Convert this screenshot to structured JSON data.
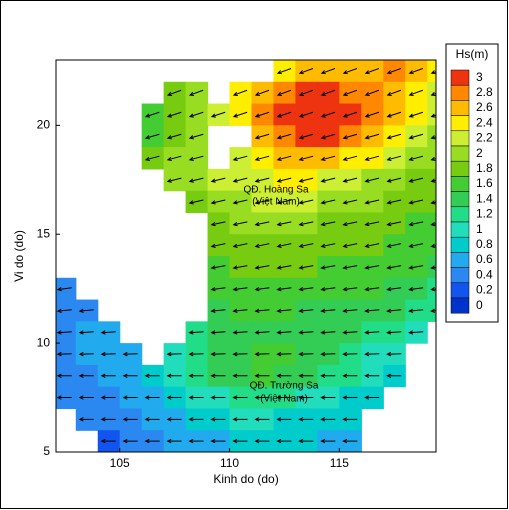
{
  "chart_data": {
    "type": "heatmap",
    "xlabel": "Kinh do (do)",
    "ylabel": "Vi do (do)",
    "xlim": [
      102.1,
      119.4
    ],
    "ylim": [
      5,
      23
    ],
    "xticks": [
      105,
      110,
      115
    ],
    "yticks": [
      5,
      10,
      15,
      20
    ],
    "x": [
      102.5,
      103.5,
      104.5,
      105.5,
      106.5,
      107.5,
      108.5,
      109.5,
      110.5,
      111.5,
      112.5,
      113.5,
      114.5,
      115.5,
      116.5,
      117.5,
      118.5,
      119.5
    ],
    "y": [
      22.5,
      21.5,
      20.5,
      19.5,
      18.5,
      17.5,
      16.5,
      15.5,
      14.5,
      13.5,
      12.5,
      11.5,
      10.5,
      9.5,
      8.5,
      7.5,
      6.5,
      5.5
    ],
    "values": [
      [
        null,
        null,
        null,
        null,
        null,
        null,
        null,
        null,
        null,
        null,
        2.4,
        2.6,
        2.6,
        2.7,
        2.7,
        2.8,
        2.6,
        2.4
      ],
      [
        null,
        null,
        null,
        null,
        null,
        1.8,
        2.0,
        null,
        2.4,
        2.6,
        2.8,
        3.0,
        3.0,
        2.9,
        2.8,
        2.7,
        2.5,
        2.3
      ],
      [
        null,
        null,
        null,
        null,
        1.6,
        1.8,
        2.0,
        2.2,
        2.5,
        2.8,
        3.1,
        3.2,
        3.2,
        3.1,
        2.9,
        2.6,
        2.4,
        2.3
      ],
      [
        null,
        null,
        null,
        null,
        1.6,
        1.8,
        2.0,
        null,
        null,
        2.7,
        2.9,
        3.1,
        3.1,
        2.9,
        2.7,
        2.4,
        2.2,
        2.1
      ],
      [
        null,
        null,
        null,
        null,
        1.8,
        2.0,
        2.1,
        null,
        2.3,
        2.5,
        2.6,
        2.7,
        2.6,
        2.5,
        2.4,
        2.2,
        2.1,
        2.0
      ],
      [
        null,
        null,
        null,
        null,
        null,
        2.0,
        2.1,
        2.2,
        2.3,
        2.3,
        2.4,
        2.4,
        2.3,
        2.2,
        2.1,
        2.0,
        1.9,
        1.8
      ],
      [
        null,
        null,
        null,
        null,
        null,
        null,
        1.9,
        2.0,
        2.1,
        2.2,
        2.2,
        2.2,
        2.1,
        2.0,
        2.0,
        1.9,
        1.8,
        1.8
      ],
      [
        null,
        null,
        null,
        null,
        null,
        null,
        null,
        1.9,
        2.0,
        2.0,
        2.0,
        2.0,
        1.9,
        1.9,
        1.8,
        1.8,
        1.7,
        1.7
      ],
      [
        null,
        null,
        null,
        null,
        null,
        null,
        null,
        1.8,
        1.9,
        1.9,
        1.9,
        1.9,
        1.8,
        1.8,
        1.8,
        1.7,
        1.7,
        1.6
      ],
      [
        null,
        null,
        null,
        null,
        null,
        null,
        null,
        1.7,
        1.8,
        1.8,
        1.8,
        1.8,
        1.7,
        1.7,
        1.7,
        1.6,
        1.6,
        1.5
      ],
      [
        0.5,
        null,
        null,
        null,
        null,
        null,
        null,
        1.6,
        1.6,
        1.7,
        1.7,
        1.7,
        1.6,
        1.6,
        1.6,
        1.5,
        1.4,
        1.3
      ],
      [
        0.5,
        0.5,
        null,
        null,
        null,
        null,
        null,
        1.5,
        1.6,
        1.6,
        1.6,
        1.5,
        1.5,
        1.5,
        1.4,
        1.4,
        1.3,
        1.2
      ],
      [
        0.5,
        0.6,
        0.6,
        null,
        null,
        null,
        1.3,
        1.4,
        1.5,
        1.5,
        1.5,
        1.5,
        1.4,
        1.4,
        1.3,
        1.2,
        1.1,
        null
      ],
      [
        0.5,
        0.6,
        0.6,
        0.7,
        null,
        1.0,
        1.2,
        1.4,
        1.5,
        1.6,
        1.6,
        1.5,
        1.4,
        1.3,
        1.1,
        1.0,
        null,
        null
      ],
      [
        0.4,
        0.5,
        0.6,
        0.7,
        0.8,
        1.0,
        1.2,
        1.4,
        1.5,
        1.6,
        1.5,
        1.4,
        1.3,
        1.2,
        1.0,
        0.9,
        null,
        null
      ],
      [
        0.4,
        0.5,
        0.5,
        0.6,
        0.7,
        0.8,
        1.0,
        1.1,
        1.2,
        1.2,
        1.2,
        1.1,
        1.0,
        0.9,
        0.8,
        null,
        null,
        null
      ],
      [
        null,
        0.4,
        0.4,
        0.5,
        0.6,
        0.7,
        0.8,
        0.9,
        1.0,
        1.0,
        0.9,
        0.9,
        0.8,
        0.8,
        null,
        null,
        null,
        null
      ],
      [
        null,
        null,
        0.3,
        0.4,
        0.5,
        0.6,
        0.7,
        0.7,
        0.8,
        0.8,
        0.8,
        0.8,
        0.7,
        0.7,
        null,
        null,
        null,
        null
      ]
    ],
    "directions": [
      200,
      200,
      198,
      196,
      195,
      194,
      193,
      192,
      192,
      190,
      188,
      186,
      184,
      182,
      180,
      180,
      180,
      180
    ],
    "colorbar": {
      "title": "Hs(m)",
      "ticks": [
        0,
        0.2,
        0.4,
        0.6,
        0.8,
        1,
        1.2,
        1.4,
        1.6,
        1.8,
        2,
        2.2,
        2.4,
        2.6,
        2.8,
        3
      ],
      "colors": [
        "#0033cc",
        "#1155ee",
        "#2a88f0",
        "#22aaee",
        "#00cccc",
        "#22ddbb",
        "#22dd88",
        "#33cc55",
        "#44cc33",
        "#77cc11",
        "#99dd22",
        "#ccee33",
        "#ffee00",
        "#ffbb00",
        "#ff8800",
        "#ee3311"
      ]
    },
    "annotations": [
      "QĐ. Hoàng Sa",
      "(Việt Nam)",
      "QĐ. Trường Sa",
      "(Việt Nam)"
    ]
  }
}
